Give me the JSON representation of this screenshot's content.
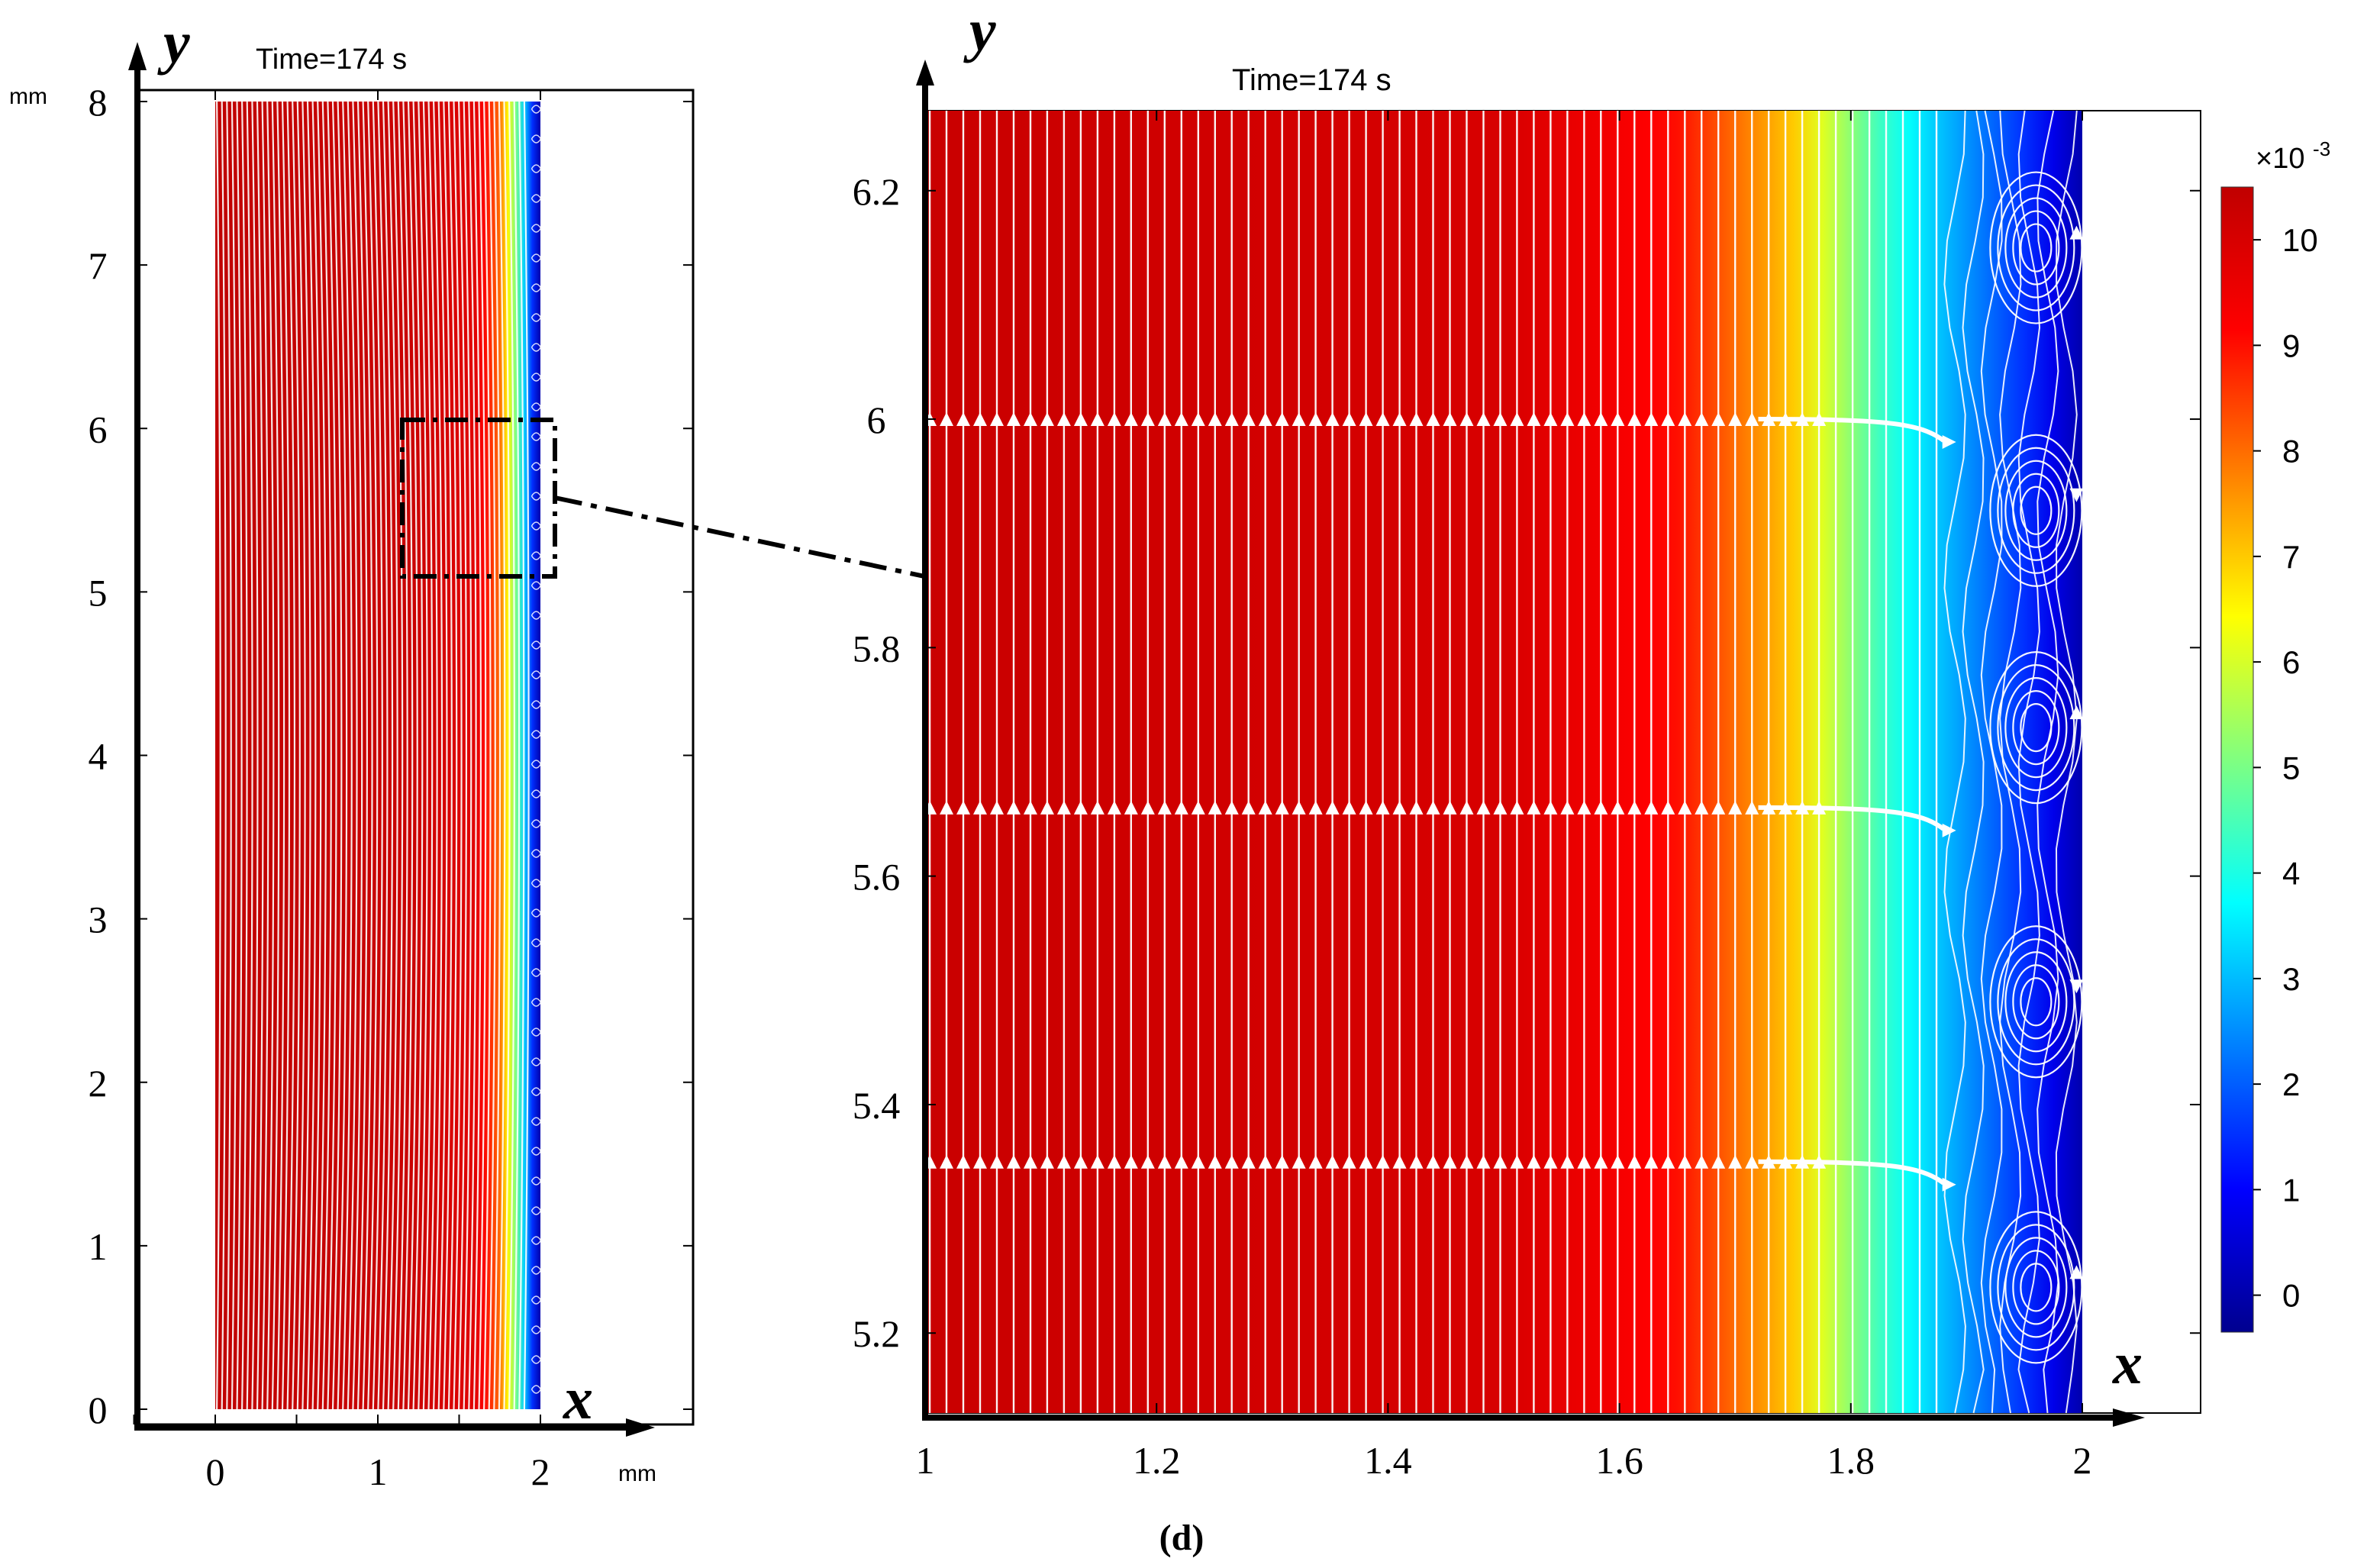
{
  "figure": {
    "panel_label": "(d)"
  },
  "colors": {
    "colormap": [
      "#00008f",
      "#0000ff",
      "#0080ff",
      "#00ffff",
      "#80ff80",
      "#ffff00",
      "#ff8000",
      "#ff0000",
      "#c00000"
    ],
    "streamline": "#ffffff",
    "axis": "#000000",
    "zoom_marker": "#000000"
  },
  "chart_data": [
    {
      "type": "heatmap",
      "name": "full-domain",
      "title": "Time=174 s",
      "xlabel": "x",
      "ylabel": "y",
      "x_unit": "mm",
      "y_unit": "mm",
      "xlim": [
        -0.5,
        2.7
      ],
      "ylim": [
        -0.1,
        8.1
      ],
      "domain_x": [
        0,
        2
      ],
      "domain_y": [
        0,
        8
      ],
      "x_ticks": [
        0,
        1,
        2
      ],
      "x_tick_labels": [
        "0",
        "1",
        "2"
      ],
      "y_ticks": [
        0,
        1,
        2,
        3,
        4,
        5,
        6,
        7,
        8
      ],
      "y_tick_labels": [
        "0",
        "1",
        "2",
        "3",
        "4",
        "5",
        "6",
        "7",
        "8"
      ],
      "field_profile": {
        "x": [
          0,
          1.2,
          1.6,
          1.75,
          1.85,
          1.95,
          2.0
        ],
        "value": [
          10.5,
          10.3,
          9.8,
          8.0,
          5.0,
          1.5,
          0
        ]
      },
      "zoom_region": {
        "x": [
          1.15,
          2.1
        ],
        "y": [
          5.05,
          6.05
        ]
      },
      "streamlines": "white, predominantly vertical, with small vortices near x = 2"
    },
    {
      "type": "heatmap",
      "name": "zoomed-view",
      "title": "Time=174 s",
      "xlabel": "x",
      "ylabel": "y",
      "xlim": [
        0.98,
        2.1
      ],
      "ylim": [
        5.13,
        6.28
      ],
      "domain_x": [
        1,
        2
      ],
      "domain_y": [
        5.13,
        6.27
      ],
      "x_ticks": [
        1,
        1.2,
        1.4,
        1.6,
        1.8,
        2
      ],
      "x_tick_labels": [
        "1",
        "1.2",
        "1.4",
        "1.6",
        "1.8",
        "2"
      ],
      "y_ticks": [
        5.2,
        5.4,
        5.6,
        5.8,
        6.0,
        6.2
      ],
      "y_tick_labels": [
        "5.2",
        "5.4",
        "5.6",
        "5.8",
        "6",
        "6.2"
      ],
      "field_profile": {
        "x": [
          1.0,
          1.5,
          1.65,
          1.75,
          1.82,
          1.88,
          1.95,
          2.0
        ],
        "value": [
          10.3,
          10.0,
          9.0,
          7.0,
          4.5,
          3.0,
          1.5,
          0.0
        ]
      },
      "arrow_rows_y": [
        5.35,
        5.66,
        6.0
      ],
      "vortex_centers": [
        {
          "x": 1.96,
          "y": 6.15
        },
        {
          "x": 1.96,
          "y": 5.92
        },
        {
          "x": 1.96,
          "y": 5.73
        },
        {
          "x": 1.96,
          "y": 5.49
        },
        {
          "x": 1.96,
          "y": 5.24
        }
      ],
      "colorbar": {
        "multiplier": "×10",
        "exponent": "-3",
        "min": -0.35,
        "max": 10.5,
        "ticks": [
          0,
          1,
          2,
          3,
          4,
          5,
          6,
          7,
          8,
          9,
          10
        ],
        "tick_labels": [
          "0",
          "1",
          "2",
          "3",
          "4",
          "5",
          "6",
          "7",
          "8",
          "9",
          "10"
        ]
      }
    }
  ]
}
